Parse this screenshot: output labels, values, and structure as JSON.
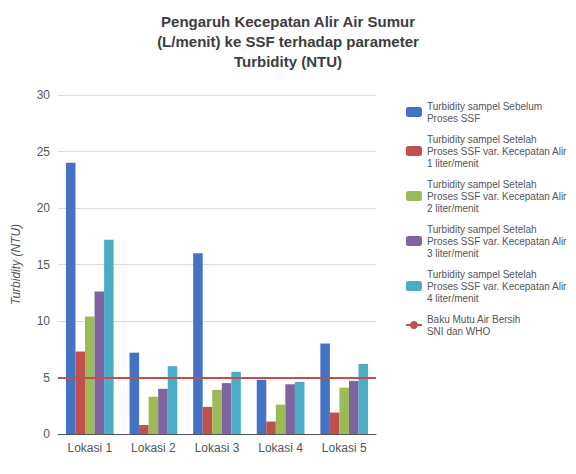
{
  "chart_data": {
    "type": "bar",
    "title": "Pengaruh Kecepatan Alir Air Sumur\n(L/menit) ke SSF terhadap parameter\nTurbidity (NTU)",
    "ylabel": "Turbidity (NTU)",
    "categories": [
      "Lokasi 1",
      "Lokasi 2",
      "Lokasi 3",
      "Lokasi 4",
      "Lokasi 5"
    ],
    "series": [
      {
        "name": "Turbidity sampel Sebelum\nProses SSF",
        "color": "#4472C4",
        "values": [
          24.0,
          7.2,
          16.0,
          4.8,
          8.0
        ]
      },
      {
        "name": "Turbidity sampel Setelah\nProses SSF var. Kecepatan Alir\n1 liter/menit",
        "color": "#C0504D",
        "values": [
          7.3,
          0.8,
          2.4,
          1.1,
          1.9
        ]
      },
      {
        "name": "Turbidity sampel Setelah\nProses SSF var. Kecepatan Alir\n2 liter/menit",
        "color": "#9BBB59",
        "values": [
          10.4,
          3.3,
          3.9,
          2.6,
          4.1
        ]
      },
      {
        "name": "Turbidity sampel Setelah\nProses SSF var. Kecepatan Alir\n3 liter/menit",
        "color": "#8064A2",
        "values": [
          12.6,
          4.0,
          4.5,
          4.4,
          4.7
        ]
      },
      {
        "name": "Turbidity sampel Setelah\nProses SSF var. Kecepatan Alir\n4 liter/menit",
        "color": "#4BACC6",
        "values": [
          17.2,
          6.0,
          5.5,
          4.6,
          6.2
        ]
      }
    ],
    "hlines": [
      {
        "name": "Baku Mutu Air Bersih\nSNI dan WHO",
        "value": 5.0,
        "color": "#C0504D"
      }
    ],
    "ylim": [
      0,
      30
    ],
    "yticks": [
      0,
      5,
      10,
      15,
      20,
      25,
      30
    ],
    "grid": true,
    "legend": "right"
  }
}
